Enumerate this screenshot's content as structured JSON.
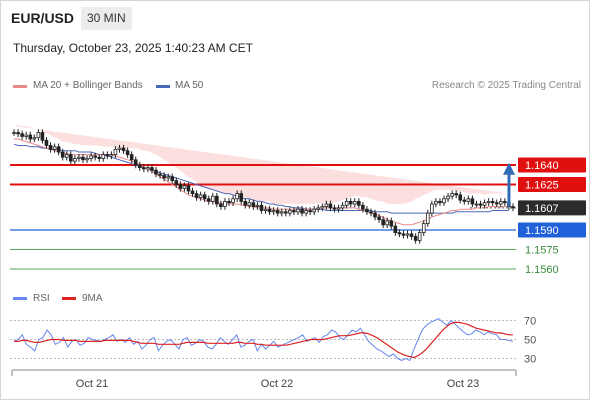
{
  "header": {
    "symbol": "EUR/USD",
    "timeframe": "30 MIN",
    "datetime": "Thursday, October 23, 2025 1:40:23 AM CET"
  },
  "legend": {
    "ma20_label": "MA 20 + Bollinger Bands",
    "ma50_label": "MA 50",
    "credit": "Research © 2025 Trading Central",
    "rsi_label": "RSI",
    "ma9_label": "9MA"
  },
  "colors": {
    "support": "#2060d8",
    "resistance": "#e01010",
    "current": "#2b2b2b",
    "target_line": "#5aa85a",
    "target_text": "#3a8a3a",
    "ma20": "#e88888",
    "ma50": "#4a68b8",
    "band_fill": "#fbd6d6",
    "arrow": "#2e6db5",
    "rsi": "#6688ee",
    "rsi_ma": "#dd2222"
  },
  "chart_data": {
    "type": "candlestick",
    "ylim": [
      1.155,
      1.169
    ],
    "x_ticks": [
      "Oct 21",
      "Oct 22",
      "Oct 23"
    ],
    "price_levels": [
      {
        "value": 1.164,
        "label": "1.1640",
        "kind": "resistance"
      },
      {
        "value": 1.1625,
        "label": "1.1625",
        "kind": "resistance"
      },
      {
        "value": 1.1607,
        "label": "1.1607",
        "kind": "current"
      },
      {
        "value": 1.159,
        "label": "1.1590",
        "kind": "support"
      },
      {
        "value": 1.1575,
        "label": "1.1575",
        "kind": "target"
      },
      {
        "value": 1.156,
        "label": "1.1560",
        "kind": "target"
      }
    ],
    "close_series": [
      1.1665,
      1.1664,
      1.1662,
      1.1663,
      1.166,
      1.1661,
      1.1665,
      1.1659,
      1.1655,
      1.1652,
      1.1654,
      1.165,
      1.1646,
      1.1648,
      1.1643,
      1.1645,
      1.1646,
      1.1644,
      1.1645,
      1.1647,
      1.1646,
      1.1645,
      1.1648,
      1.1647,
      1.1648,
      1.1652,
      1.1653,
      1.1651,
      1.1648,
      1.1644,
      1.164,
      1.1638,
      1.1637,
      1.1638,
      1.1636,
      1.1633,
      1.1632,
      1.163,
      1.1631,
      1.1628,
      1.1625,
      1.1622,
      1.1624,
      1.162,
      1.1618,
      1.1615,
      1.1617,
      1.1614,
      1.1612,
      1.1616,
      1.161,
      1.1608,
      1.1612,
      1.1611,
      1.1614,
      1.1618,
      1.1612,
      1.1609,
      1.1611,
      1.1608,
      1.1609,
      1.1605,
      1.1606,
      1.1604,
      1.1605,
      1.1603,
      1.1604,
      1.1603,
      1.1605,
      1.1604,
      1.1606,
      1.1603,
      1.1605,
      1.1604,
      1.1606,
      1.1607,
      1.1608,
      1.161,
      1.1607,
      1.1606,
      1.1607,
      1.1609,
      1.1612,
      1.161,
      1.1612,
      1.1609,
      1.1606,
      1.1604,
      1.1603,
      1.16,
      1.1598,
      1.1594,
      1.1597,
      1.1593,
      1.1588,
      1.1587,
      1.1586,
      1.1587,
      1.1585,
      1.1582,
      1.1588,
      1.1595,
      1.1603,
      1.161,
      1.1612,
      1.1611,
      1.1614,
      1.1616,
      1.1618,
      1.1617,
      1.1613,
      1.1612,
      1.1614,
      1.161,
      1.161,
      1.1609,
      1.1611,
      1.1612,
      1.1611,
      1.161,
      1.1612,
      1.1611,
      1.1608,
      1.1607
    ],
    "ma20_series": [
      1.166,
      1.166,
      1.1659,
      1.1658,
      1.1657,
      1.1656,
      1.1655,
      1.1654,
      1.1653,
      1.1652,
      1.1651,
      1.165,
      1.1649,
      1.1649,
      1.1648,
      1.1648,
      1.1648,
      1.1648,
      1.1648,
      1.1648,
      1.1648,
      1.1648,
      1.1648,
      1.1648,
      1.1648,
      1.1647,
      1.1646,
      1.1645,
      1.1644,
      1.1643,
      1.1642,
      1.164,
      1.1638,
      1.1637,
      1.1635,
      1.1633,
      1.1631,
      1.1629,
      1.1627,
      1.1625,
      1.1623,
      1.1621,
      1.1619,
      1.1617,
      1.1616,
      1.1615,
      1.1614,
      1.1613,
      1.1612,
      1.1612,
      1.1611,
      1.1611,
      1.161,
      1.161,
      1.161,
      1.161,
      1.1609,
      1.1609,
      1.1608,
      1.1608,
      1.1607,
      1.1607,
      1.1607,
      1.1607,
      1.1606,
      1.1606,
      1.1606,
      1.1606,
      1.1606,
      1.1606,
      1.1606,
      1.1606,
      1.1606,
      1.1606,
      1.1606,
      1.1607,
      1.1607,
      1.1607,
      1.1607,
      1.1607,
      1.1607,
      1.1607,
      1.1607,
      1.1607,
      1.1607,
      1.1606,
      1.1605,
      1.1604,
      1.1603,
      1.1602,
      1.1601,
      1.16,
      1.1598,
      1.1597,
      1.1596,
      1.1595,
      1.1594,
      1.1594,
      1.1594,
      1.1595,
      1.1596,
      1.1597,
      1.1598,
      1.16,
      1.1601,
      1.1602,
      1.1603,
      1.1604,
      1.1605,
      1.1605,
      1.1606,
      1.1606,
      1.1606,
      1.1606,
      1.1607,
      1.1607,
      1.1607,
      1.1608,
      1.1608,
      1.1608,
      1.1608,
      1.1608,
      1.1608,
      1.1608
    ],
    "ma50_series": [
      1.1656,
      1.1655,
      1.1655,
      1.1655,
      1.1654,
      1.1654,
      1.1654,
      1.1653,
      1.1653,
      1.1652,
      1.1652,
      1.1652,
      1.1651,
      1.1651,
      1.1651,
      1.1651,
      1.165,
      1.165,
      1.165,
      1.165,
      1.1649,
      1.1648,
      1.1648,
      1.1647,
      1.1646,
      1.1645,
      1.1644,
      1.1643,
      1.1642,
      1.1641,
      1.164,
      1.1639,
      1.1638,
      1.1637,
      1.1636,
      1.1635,
      1.1634,
      1.1633,
      1.1632,
      1.1631,
      1.163,
      1.1629,
      1.1628,
      1.1627,
      1.1626,
      1.1625,
      1.1624,
      1.1623,
      1.1622,
      1.1621,
      1.162,
      1.1619,
      1.1618,
      1.1618,
      1.1617,
      1.1616,
      1.1615,
      1.1614,
      1.1614,
      1.1613,
      1.1612,
      1.1612,
      1.1611,
      1.161,
      1.161,
      1.1609,
      1.1609,
      1.1608,
      1.1608,
      1.1607,
      1.1607,
      1.1607,
      1.1606,
      1.1606,
      1.1606,
      1.1606,
      1.1606,
      1.1605,
      1.1605,
      1.1605,
      1.1605,
      1.1605,
      1.1605,
      1.1605,
      1.1605,
      1.1605,
      1.1605,
      1.1605,
      1.1605,
      1.1604,
      1.1604,
      1.1604,
      1.1604,
      1.1603,
      1.1603,
      1.1603,
      1.1603,
      1.1603,
      1.1603,
      1.1603,
      1.1603,
      1.1603,
      1.1603,
      1.1603,
      1.1603,
      1.1603,
      1.1603,
      1.1603,
      1.1603,
      1.1604,
      1.1604,
      1.1604,
      1.1604,
      1.1604,
      1.1604,
      1.1604,
      1.1604,
      1.1604,
      1.1605,
      1.1605,
      1.1605,
      1.1605,
      1.1605
    ],
    "band_width_series": [
      0.001,
      0.0011,
      0.0011,
      0.0012,
      0.0012,
      0.0012,
      0.0012,
      0.0011,
      0.0011,
      0.0011,
      0.001,
      0.001,
      0.0009,
      0.0009,
      0.0009,
      0.0008,
      0.0008,
      0.0007,
      0.0007,
      0.0007,
      0.0007,
      0.0007,
      0.0006,
      0.0006,
      0.0006,
      0.0006,
      0.0007,
      0.0008,
      0.0009,
      0.001,
      0.0011,
      0.0012,
      0.0013,
      0.0014,
      0.0014,
      0.0015,
      0.0015,
      0.0015,
      0.0015,
      0.0015,
      0.0015,
      0.0015,
      0.0014,
      0.0014,
      0.0013,
      0.0012,
      0.0011,
      0.001,
      0.0009,
      0.0009,
      0.0009,
      0.0008,
      0.0008,
      0.0008,
      0.0008,
      0.0007,
      0.0007,
      0.0006,
      0.0006,
      0.0006,
      0.0005,
      0.0005,
      0.0005,
      0.0005,
      0.0004,
      0.0004,
      0.0004,
      0.0004,
      0.0004,
      0.0004,
      0.0004,
      0.0004,
      0.0004,
      0.0004,
      0.0004,
      0.0004,
      0.0004,
      0.0004,
      0.0004,
      0.0004,
      0.0005,
      0.0006,
      0.0007,
      0.0008,
      0.0009,
      0.001,
      0.001,
      0.0011,
      0.0011,
      0.0011,
      0.0011,
      0.0012,
      0.0012,
      0.0013,
      0.0014,
      0.0015,
      0.0016,
      0.0017,
      0.0018,
      0.0019,
      0.0019,
      0.002,
      0.002,
      0.002,
      0.002,
      0.0019,
      0.0018,
      0.0017,
      0.0016,
      0.0015,
      0.0014,
      0.0013,
      0.0012,
      0.0012,
      0.0011,
      0.0011,
      0.001,
      0.001,
      0.001,
      0.001,
      0.001,
      0.001,
      0.001
    ],
    "target_arrow": {
      "from_index": 122,
      "from_value": 1.1608,
      "to_value": 1.1638
    },
    "rsi": {
      "ylim": [
        20,
        80
      ],
      "ticks": [
        "70",
        "50",
        "30"
      ],
      "tick_values": [
        70,
        50,
        30
      ],
      "rsi_series": [
        48,
        50,
        55,
        45,
        42,
        38,
        50,
        52,
        60,
        55,
        45,
        47,
        52,
        42,
        48,
        50,
        44,
        46,
        52,
        50,
        49,
        48,
        50,
        52,
        55,
        48,
        50,
        47,
        52,
        45,
        48,
        40,
        44,
        50,
        52,
        38,
        44,
        48,
        50,
        45,
        40,
        50,
        52,
        44,
        46,
        50,
        48,
        42,
        40,
        45,
        52,
        48,
        45,
        50,
        55,
        42,
        44,
        48,
        50,
        38,
        45,
        40,
        44,
        48,
        42,
        44,
        46,
        48,
        50,
        52,
        55,
        48,
        50,
        52,
        47,
        53,
        55,
        60,
        58,
        52,
        50,
        55,
        60,
        58,
        62,
        55,
        48,
        44,
        40,
        38,
        35,
        32,
        35,
        30,
        28,
        30,
        28,
        40,
        50,
        60,
        65,
        68,
        70,
        72,
        68,
        65,
        70,
        66,
        62,
        58,
        55,
        56,
        60,
        58,
        55,
        58,
        56,
        55,
        50,
        50,
        49,
        48
      ],
      "ma_series": [
        48,
        48,
        49,
        49,
        48,
        47,
        47,
        48,
        49,
        50,
        50,
        50,
        49,
        49,
        49,
        49,
        48,
        48,
        48,
        48,
        48,
        48,
        49,
        49,
        49,
        49,
        49,
        49,
        49,
        48,
        47,
        46,
        46,
        46,
        46,
        45,
        45,
        45,
        45,
        45,
        45,
        46,
        47,
        47,
        47,
        47,
        47,
        46,
        46,
        46,
        46,
        46,
        46,
        46,
        47,
        47,
        46,
        46,
        46,
        45,
        45,
        44,
        44,
        44,
        44,
        44,
        44,
        45,
        46,
        47,
        48,
        49,
        50,
        50,
        50,
        50,
        51,
        52,
        53,
        54,
        54,
        54,
        55,
        56,
        57,
        57,
        56,
        54,
        52,
        49,
        46,
        43,
        40,
        37,
        35,
        33,
        32,
        31,
        33,
        36,
        40,
        45,
        50,
        55,
        60,
        64,
        67,
        68,
        68,
        67,
        66,
        64,
        62,
        61,
        60,
        59,
        58,
        57,
        57,
        56,
        55,
        55
      ]
    }
  }
}
